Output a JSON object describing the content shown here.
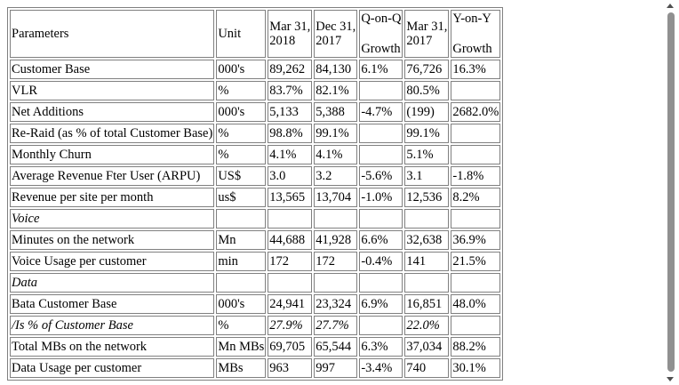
{
  "header": {
    "parameters": "Parameters",
    "unit": "Unit",
    "mar2018_line1": "Mar 31,",
    "mar2018_line2": "2018",
    "dec2017_line1": "Dec 31,",
    "dec2017_line2": "2017",
    "qoq_line1": "Q-on-Q",
    "qoq_line2": "Growth",
    "mar2017_line1": "Mar 31,",
    "mar2017_line2": "2017",
    "yoy_line1": "Y-on-Y",
    "yoy_line2": "Growth"
  },
  "rows": [
    {
      "param": "Customer Base",
      "unit": "000's",
      "mar18": "89,262",
      "dec17": "84,130",
      "qoq": "6.1%",
      "mar17": "76,726",
      "yoy": "16.3%"
    },
    {
      "param": "VLR",
      "unit": "%",
      "mar18": "83.7%",
      "dec17": "82.1%",
      "qoq": "",
      "mar17": "80.5%",
      "yoy": ""
    },
    {
      "param": "Net Additions",
      "unit": "000's",
      "mar18": "5,133",
      "dec17": "5,388",
      "qoq": "-4.7%",
      "mar17": "(199)",
      "yoy": "2682.0%"
    },
    {
      "param": "Re-Raid (as % of total Customer Base)",
      "unit": "%",
      "mar18": "98.8%",
      "dec17": "99.1%",
      "qoq": "",
      "mar17": "99.1%",
      "yoy": ""
    },
    {
      "param": "Monthly Churn",
      "unit": "%",
      "mar18": "4.1%",
      "dec17": "4.1%",
      "qoq": "",
      "mar17": "5.1%",
      "yoy": ""
    },
    {
      "param": "Average Revenue Fter User (ARPU)",
      "unit": "US$",
      "mar18": "3.0",
      "dec17": "3.2",
      "qoq": "-5.6%",
      "mar17": "3.1",
      "yoy": "-1.8%"
    },
    {
      "param": "Revenue per site per month",
      "unit": "us$",
      "mar18": "13,565",
      "dec17": "13,704",
      "qoq": "-1.0%",
      "mar17": "12,536",
      "yoy": "8.2%"
    },
    {
      "param": "Voice",
      "unit": "",
      "mar18": "",
      "dec17": "",
      "qoq": "",
      "mar17": "",
      "yoy": "",
      "section": true
    },
    {
      "param": "Minutes on the network",
      "unit": "Mn",
      "mar18": "44,688",
      "dec17": "41,928",
      "qoq": "6.6%",
      "mar17": "32,638",
      "yoy": "36.9%"
    },
    {
      "param": "Voice Usage per customer",
      "unit": "min",
      "mar18": "172",
      "dec17": "172",
      "qoq": "-0.4%",
      "mar17": "141",
      "yoy": "21.5%"
    },
    {
      "param": "Data",
      "unit": "",
      "mar18": "",
      "dec17": "",
      "qoq": "",
      "mar17": "",
      "yoy": "",
      "section": true
    },
    {
      "param": "Bata Customer Base",
      "unit": "000's",
      "mar18": "24,941",
      "dec17": "23,324",
      "qoq": "6.9%",
      "mar17": "16,851",
      "yoy": "48.0%"
    },
    {
      "param": "/Is % of Customer Base",
      "unit": "%",
      "mar18": "27.9%",
      "dec17": "27.7%",
      "qoq": "",
      "mar17": "22.0%",
      "yoy": "",
      "italic": true
    },
    {
      "param": "Total MBs on the network",
      "unit": "Mn MBs",
      "mar18": "69,705",
      "dec17": "65,544",
      "qoq": "6.3%",
      "mar17": "37,034",
      "yoy": "88.2%"
    },
    {
      "param": "Data Usage per customer",
      "unit": "MBs",
      "mar18": "963",
      "dec17": "997",
      "qoq": "-3.4%",
      "mar17": "740",
      "yoy": "30.1%"
    }
  ]
}
